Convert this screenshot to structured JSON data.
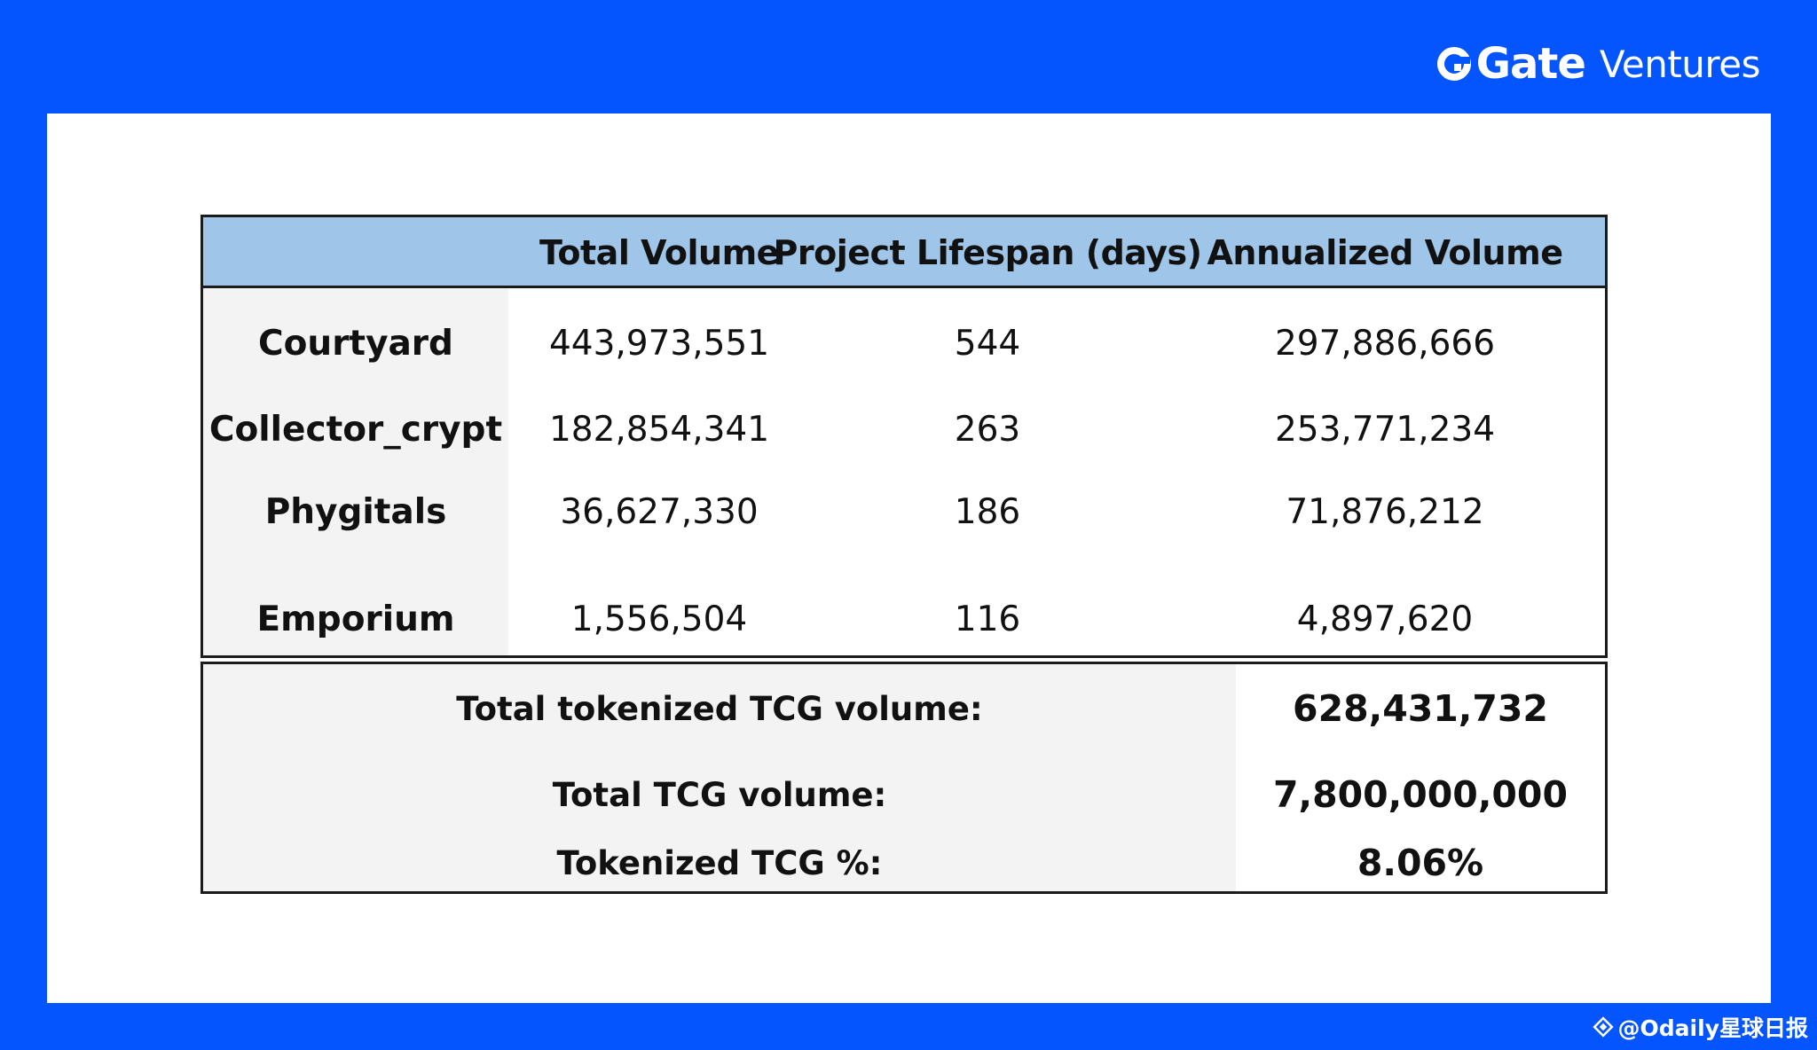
{
  "brand": {
    "name": "Gate",
    "sub": "Ventures"
  },
  "table": {
    "headers": [
      "",
      "Total Volume",
      "Project Lifespan (days)",
      "Annualized Volume"
    ],
    "rows": [
      {
        "project": "Courtyard",
        "total_volume": "443,973,551",
        "lifespan_days": "544",
        "annualized_volume": "297,886,666"
      },
      {
        "project": "Collector_crypt",
        "total_volume": "182,854,341",
        "lifespan_days": "263",
        "annualized_volume": "253,771,234"
      },
      {
        "project": "Phygitals",
        "total_volume": "36,627,330",
        "lifespan_days": "186",
        "annualized_volume": "71,876,212"
      },
      {
        "project": "Emporium",
        "total_volume": "1,556,504",
        "lifespan_days": "116",
        "annualized_volume": "4,897,620"
      }
    ],
    "summary": [
      {
        "label": "Total tokenized TCG volume:",
        "value": "628,431,732"
      },
      {
        "label": "Total TCG volume:",
        "value": "7,800,000,000"
      },
      {
        "label": "Tokenized TCG %:",
        "value": "8.06%"
      }
    ]
  },
  "watermark": {
    "text": "@Odaily星球日报"
  },
  "colors": {
    "background": "#0455fe",
    "header_fill": "#9fc5e9",
    "label_fill": "#f3f3f3"
  }
}
